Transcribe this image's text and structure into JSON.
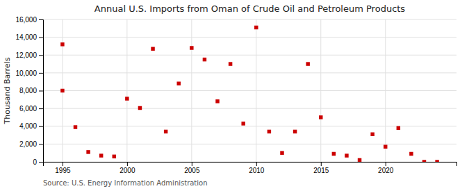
{
  "chart_data": {
    "type": "scatter",
    "title": "Annual U.S. Imports from Oman of Crude Oil and Petroleum Products",
    "ylabel": "Thousand Barrels",
    "source": "Source: U.S. Energy Information Administration",
    "x": [
      1995,
      1995,
      1996,
      1997,
      1998,
      1999,
      2000,
      2001,
      2002,
      2003,
      2004,
      2005,
      2006,
      2007,
      2008,
      2009,
      2010,
      2011,
      2012,
      2013,
      2014,
      2015,
      2016,
      2017,
      2018,
      2019,
      2020,
      2021,
      2022,
      2023,
      2024
    ],
    "values": [
      8000,
      13200,
      3900,
      1100,
      700,
      600,
      7100,
      6050,
      12700,
      3400,
      8800,
      12800,
      11500,
      6800,
      11000,
      4300,
      15100,
      3400,
      1000,
      3400,
      11000,
      5000,
      900,
      700,
      200,
      3100,
      1700,
      3800,
      900,
      0,
      0
    ],
    "color": "#cc0000",
    "marker": "square",
    "xlim": [
      1993.5,
      2025.5
    ],
    "ylim": [
      0,
      16000
    ],
    "xticks": [
      1995,
      2000,
      2005,
      2010,
      2015,
      2020
    ],
    "yticks": [
      0,
      {
        "value": 2000,
        "label": "2,000"
      },
      {
        "value": 4000,
        "label": "4,000"
      },
      {
        "value": 6000,
        "label": "6,000"
      },
      {
        "value": 8000,
        "label": "8,000"
      },
      {
        "value": 10000,
        "label": "10,000"
      },
      {
        "value": 12000,
        "label": "12,000"
      },
      {
        "value": 14000,
        "label": "14,000"
      },
      {
        "value": 16000,
        "label": "16,000"
      }
    ],
    "grid": true
  }
}
